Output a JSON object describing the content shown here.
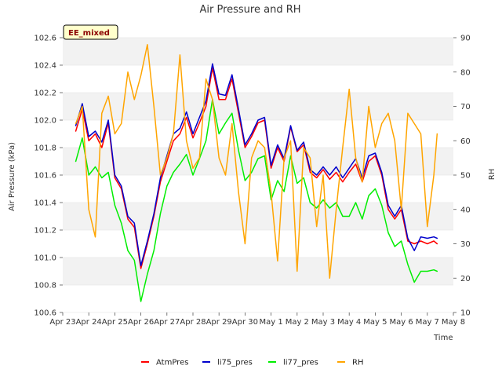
{
  "chart_data": {
    "type": "line",
    "title": "Air Pressure and RH",
    "xlabel": "Time",
    "ylabel": "Air Pressure (kPa)",
    "y2label": "RH",
    "badge": "EE_mixed",
    "ylim": [
      100.6,
      102.6
    ],
    "y2lim": [
      10,
      90
    ],
    "xlim": [
      "2024-04-23",
      "2024-05-08"
    ],
    "x_ticks": [
      "Apr 23",
      "Apr 24",
      "Apr 25",
      "Apr 26",
      "Apr 27",
      "Apr 28",
      "Apr 29",
      "Apr 30",
      "May 1",
      "May 2",
      "May 3",
      "May 4",
      "May 5",
      "May 6",
      "May 7",
      "May 8"
    ],
    "y_ticks": [
      100.6,
      100.8,
      101.0,
      101.2,
      101.4,
      101.6,
      101.8,
      102.0,
      102.2,
      102.4,
      102.6
    ],
    "y2_ticks": [
      10,
      20,
      30,
      40,
      50,
      60,
      70,
      80,
      90
    ],
    "y_tick_labels": [
      "100.6",
      "100.8",
      "101.0",
      "101.2",
      "101.4",
      "101.6",
      "101.8",
      "102.0",
      "102.2",
      "102.4",
      "102.6"
    ],
    "y2_tick_labels": [
      "10",
      "20",
      "30",
      "40",
      "50",
      "60",
      "70",
      "80",
      "90"
    ],
    "grid": "horizontal bands",
    "legend": "bottom-center",
    "colors": {
      "AtmPres": "#ff0000",
      "li75_pres": "#0000cc",
      "li77_pres": "#00ee00",
      "RH": "#ffa500"
    },
    "series": [
      {
        "name": "AtmPres",
        "axis": "left",
        "x": [
          "2024-04-23T12:00",
          "2024-04-23T18:00",
          "2024-04-24T00:00",
          "2024-04-24T06:00",
          "2024-04-24T12:00",
          "2024-04-24T18:00",
          "2024-04-25T00:00",
          "2024-04-25T06:00",
          "2024-04-25T12:00",
          "2024-04-25T18:00",
          "2024-04-26T00:00",
          "2024-04-26T06:00",
          "2024-04-26T12:00",
          "2024-04-26T18:00",
          "2024-04-27T00:00",
          "2024-04-27T06:00",
          "2024-04-27T12:00",
          "2024-04-27T18:00",
          "2024-04-28T00:00",
          "2024-04-28T06:00",
          "2024-04-28T12:00",
          "2024-04-28T18:00",
          "2024-04-29T00:00",
          "2024-04-29T06:00",
          "2024-04-29T12:00",
          "2024-04-29T18:00",
          "2024-04-30T00:00",
          "2024-04-30T06:00",
          "2024-04-30T12:00",
          "2024-04-30T18:00",
          "2024-05-01T00:00",
          "2024-05-01T06:00",
          "2024-05-01T12:00",
          "2024-05-01T18:00",
          "2024-05-02T00:00",
          "2024-05-02T06:00",
          "2024-05-02T12:00",
          "2024-05-02T18:00",
          "2024-05-03T00:00",
          "2024-05-03T06:00",
          "2024-05-03T12:00",
          "2024-05-03T18:00",
          "2024-05-04T00:00",
          "2024-05-04T06:00",
          "2024-05-04T12:00",
          "2024-05-04T18:00",
          "2024-05-05T00:00",
          "2024-05-05T06:00",
          "2024-05-05T12:00",
          "2024-05-05T18:00",
          "2024-05-06T00:00",
          "2024-05-06T06:00",
          "2024-05-06T12:00",
          "2024-05-06T18:00",
          "2024-05-07T00:00",
          "2024-05-07T06:00",
          "2024-05-07T09:00"
        ],
        "values": [
          101.92,
          102.08,
          101.85,
          101.9,
          101.8,
          101.98,
          101.58,
          101.5,
          101.28,
          101.22,
          100.92,
          101.1,
          101.3,
          101.55,
          101.7,
          101.85,
          101.9,
          102.02,
          101.87,
          101.98,
          102.1,
          102.38,
          102.15,
          102.15,
          102.3,
          102.05,
          101.8,
          101.88,
          101.98,
          102.0,
          101.65,
          101.8,
          101.7,
          101.95,
          101.77,
          101.82,
          101.62,
          101.58,
          101.64,
          101.57,
          101.62,
          101.55,
          101.62,
          101.68,
          101.55,
          101.7,
          101.74,
          101.6,
          101.35,
          101.28,
          101.35,
          101.12,
          101.1,
          101.12,
          101.1,
          101.12,
          101.1
        ]
      },
      {
        "name": "li75_pres",
        "axis": "left",
        "x": [
          "2024-04-23T12:00",
          "2024-04-23T18:00",
          "2024-04-24T00:00",
          "2024-04-24T06:00",
          "2024-04-24T12:00",
          "2024-04-24T18:00",
          "2024-04-25T00:00",
          "2024-04-25T06:00",
          "2024-04-25T12:00",
          "2024-04-25T18:00",
          "2024-04-26T00:00",
          "2024-04-26T06:00",
          "2024-04-26T12:00",
          "2024-04-26T18:00",
          "2024-04-27T00:00",
          "2024-04-27T06:00",
          "2024-04-27T12:00",
          "2024-04-27T18:00",
          "2024-04-28T00:00",
          "2024-04-28T06:00",
          "2024-04-28T12:00",
          "2024-04-28T18:00",
          "2024-04-29T00:00",
          "2024-04-29T06:00",
          "2024-04-29T12:00",
          "2024-04-29T18:00",
          "2024-04-30T00:00",
          "2024-04-30T06:00",
          "2024-04-30T12:00",
          "2024-04-30T18:00",
          "2024-05-01T00:00",
          "2024-05-01T06:00",
          "2024-05-01T12:00",
          "2024-05-01T18:00",
          "2024-05-02T00:00",
          "2024-05-02T06:00",
          "2024-05-02T12:00",
          "2024-05-02T18:00",
          "2024-05-03T00:00",
          "2024-05-03T06:00",
          "2024-05-03T12:00",
          "2024-05-03T18:00",
          "2024-05-04T00:00",
          "2024-05-04T06:00",
          "2024-05-04T12:00",
          "2024-05-04T18:00",
          "2024-05-05T00:00",
          "2024-05-05T06:00",
          "2024-05-05T12:00",
          "2024-05-05T18:00",
          "2024-05-06T00:00",
          "2024-05-06T06:00",
          "2024-05-06T12:00",
          "2024-05-06T18:00",
          "2024-05-07T00:00",
          "2024-05-07T06:00",
          "2024-05-07T09:00"
        ],
        "values": [
          101.96,
          102.12,
          101.88,
          101.92,
          101.84,
          102.0,
          101.6,
          101.52,
          101.3,
          101.25,
          100.94,
          101.12,
          101.32,
          101.58,
          101.74,
          101.9,
          101.94,
          102.06,
          101.9,
          102.02,
          102.14,
          102.41,
          102.19,
          102.18,
          102.33,
          102.08,
          101.82,
          101.9,
          102.0,
          102.02,
          101.67,
          101.82,
          101.72,
          101.96,
          101.78,
          101.84,
          101.64,
          101.6,
          101.66,
          101.6,
          101.66,
          101.58,
          101.65,
          101.72,
          101.58,
          101.74,
          101.76,
          101.62,
          101.38,
          101.3,
          101.38,
          101.14,
          101.05,
          101.15,
          101.14,
          101.15,
          101.14
        ]
      },
      {
        "name": "li77_pres",
        "axis": "left",
        "x": [
          "2024-04-23T12:00",
          "2024-04-23T18:00",
          "2024-04-24T00:00",
          "2024-04-24T06:00",
          "2024-04-24T12:00",
          "2024-04-24T18:00",
          "2024-04-25T00:00",
          "2024-04-25T06:00",
          "2024-04-25T12:00",
          "2024-04-25T18:00",
          "2024-04-26T00:00",
          "2024-04-26T06:00",
          "2024-04-26T12:00",
          "2024-04-26T18:00",
          "2024-04-27T00:00",
          "2024-04-27T06:00",
          "2024-04-27T12:00",
          "2024-04-27T18:00",
          "2024-04-28T00:00",
          "2024-04-28T06:00",
          "2024-04-28T12:00",
          "2024-04-28T18:00",
          "2024-04-29T00:00",
          "2024-04-29T06:00",
          "2024-04-29T12:00",
          "2024-04-29T18:00",
          "2024-04-30T00:00",
          "2024-04-30T06:00",
          "2024-04-30T12:00",
          "2024-04-30T18:00",
          "2024-05-01T00:00",
          "2024-05-01T06:00",
          "2024-05-01T12:00",
          "2024-05-01T18:00",
          "2024-05-02T00:00",
          "2024-05-02T06:00",
          "2024-05-02T12:00",
          "2024-05-02T18:00",
          "2024-05-03T00:00",
          "2024-05-03T06:00",
          "2024-05-03T12:00",
          "2024-05-03T18:00",
          "2024-05-04T00:00",
          "2024-05-04T06:00",
          "2024-05-04T12:00",
          "2024-05-04T18:00",
          "2024-05-05T00:00",
          "2024-05-05T06:00",
          "2024-05-05T12:00",
          "2024-05-05T18:00",
          "2024-05-06T00:00",
          "2024-05-06T06:00",
          "2024-05-06T12:00",
          "2024-05-06T18:00",
          "2024-05-07T00:00",
          "2024-05-07T06:00",
          "2024-05-07T09:00"
        ],
        "values": [
          101.7,
          101.87,
          101.6,
          101.66,
          101.58,
          101.62,
          101.38,
          101.25,
          101.05,
          100.98,
          100.68,
          100.88,
          101.05,
          101.32,
          101.52,
          101.62,
          101.68,
          101.75,
          101.6,
          101.72,
          101.85,
          102.15,
          101.9,
          101.98,
          102.05,
          101.78,
          101.56,
          101.62,
          101.72,
          101.74,
          101.42,
          101.56,
          101.48,
          101.74,
          101.54,
          101.58,
          101.4,
          101.36,
          101.42,
          101.36,
          101.4,
          101.3,
          101.3,
          101.4,
          101.28,
          101.45,
          101.5,
          101.38,
          101.18,
          101.08,
          101.12,
          100.95,
          100.82,
          100.9,
          100.9,
          100.91,
          100.9
        ]
      },
      {
        "name": "RH",
        "axis": "right",
        "x": [
          "2024-04-23T12:00",
          "2024-04-23T18:00",
          "2024-04-24T00:00",
          "2024-04-24T06:00",
          "2024-04-24T12:00",
          "2024-04-24T18:00",
          "2024-04-25T00:00",
          "2024-04-25T06:00",
          "2024-04-25T12:00",
          "2024-04-25T18:00",
          "2024-04-26T00:00",
          "2024-04-26T06:00",
          "2024-04-26T12:00",
          "2024-04-26T18:00",
          "2024-04-27T00:00",
          "2024-04-27T06:00",
          "2024-04-27T12:00",
          "2024-04-27T18:00",
          "2024-04-28T00:00",
          "2024-04-28T06:00",
          "2024-04-28T12:00",
          "2024-04-28T18:00",
          "2024-04-29T00:00",
          "2024-04-29T06:00",
          "2024-04-29T12:00",
          "2024-04-29T18:00",
          "2024-04-30T00:00",
          "2024-04-30T06:00",
          "2024-04-30T12:00",
          "2024-04-30T18:00",
          "2024-05-01T00:00",
          "2024-05-01T06:00",
          "2024-05-01T12:00",
          "2024-05-01T18:00",
          "2024-05-02T00:00",
          "2024-05-02T06:00",
          "2024-05-02T12:00",
          "2024-05-02T18:00",
          "2024-05-03T00:00",
          "2024-05-03T06:00",
          "2024-05-03T12:00",
          "2024-05-03T18:00",
          "2024-05-04T00:00",
          "2024-05-04T06:00",
          "2024-05-04T12:00",
          "2024-05-04T18:00",
          "2024-05-05T00:00",
          "2024-05-05T06:00",
          "2024-05-05T12:00",
          "2024-05-05T18:00",
          "2024-05-06T00:00",
          "2024-05-06T06:00",
          "2024-05-06T12:00",
          "2024-05-06T18:00",
          "2024-05-07T00:00",
          "2024-05-07T06:00",
          "2024-05-07T09:00"
        ],
        "values": [
          65,
          70,
          40,
          32,
          68,
          73,
          62,
          65,
          80,
          72,
          79,
          88,
          70,
          50,
          55,
          62,
          85,
          60,
          52,
          55,
          78,
          72,
          55,
          50,
          65,
          45,
          30,
          55,
          60,
          58,
          45,
          25,
          55,
          60,
          22,
          58,
          55,
          35,
          50,
          20,
          40,
          58,
          75,
          55,
          48,
          70,
          58,
          65,
          68,
          60,
          40,
          68,
          65,
          62,
          35,
          50,
          62
        ]
      }
    ]
  }
}
